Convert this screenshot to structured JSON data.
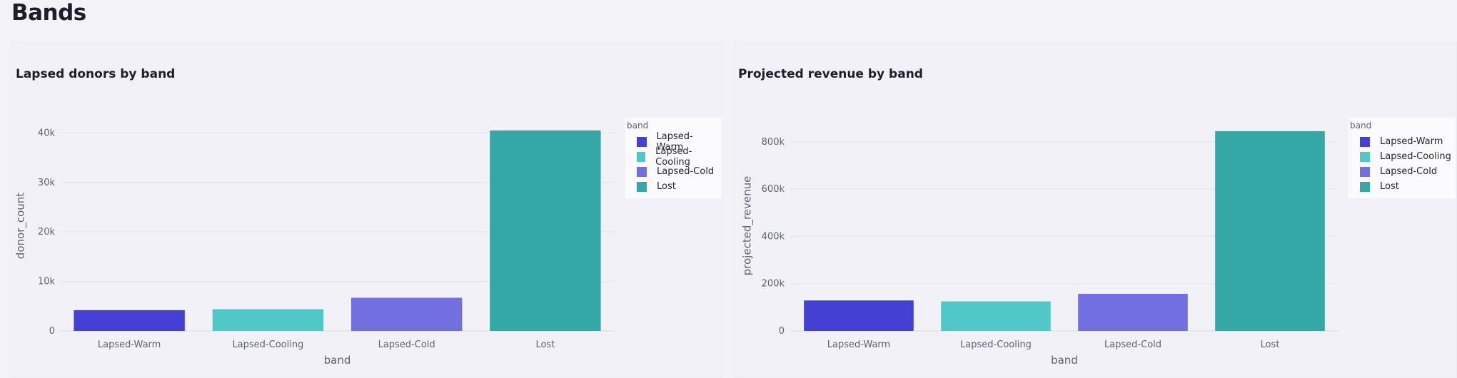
{
  "page": {
    "title": "Bands"
  },
  "colors": {
    "Lapsed-Warm": "#4440d4",
    "Lapsed-Cooling": "#50c8c8",
    "Lapsed-Cold": "#7270e0",
    "Lost": "#33a8a6"
  },
  "chart_data": [
    {
      "type": "bar",
      "title": "Lapsed donors by band",
      "categories": [
        "Lapsed-Warm",
        "Lapsed-Cooling",
        "Lapsed-Cold",
        "Lost"
      ],
      "values": [
        4200,
        4400,
        6700,
        40500
      ],
      "xlabel": "band",
      "ylabel": "donor_count",
      "ylim": [
        0,
        42500
      ],
      "yticks": [
        0,
        10000,
        20000,
        30000,
        40000
      ],
      "ytick_labels": [
        "0",
        "10k",
        "20k",
        "30k",
        "40k"
      ],
      "legend": {
        "title": "band",
        "entries": [
          "Lapsed-Warm",
          "Lapsed-Cooling",
          "Lapsed-Cold",
          "Lost"
        ],
        "placement": "top-right"
      },
      "grid": true
    },
    {
      "type": "bar",
      "title": "Projected revenue by band",
      "categories": [
        "Lapsed-Warm",
        "Lapsed-Cooling",
        "Lapsed-Cold",
        "Lost"
      ],
      "values": [
        129000,
        125000,
        157000,
        845000
      ],
      "xlabel": "band",
      "ylabel": "projected_revenue",
      "ylim": [
        0,
        890000
      ],
      "yticks": [
        0,
        200000,
        400000,
        600000,
        800000
      ],
      "ytick_labels": [
        "0",
        "200k",
        "400k",
        "600k",
        "800k"
      ],
      "legend": {
        "title": "band",
        "entries": [
          "Lapsed-Warm",
          "Lapsed-Cooling",
          "Lapsed-Cold",
          "Lost"
        ],
        "placement": "top-right"
      },
      "grid": true
    }
  ]
}
